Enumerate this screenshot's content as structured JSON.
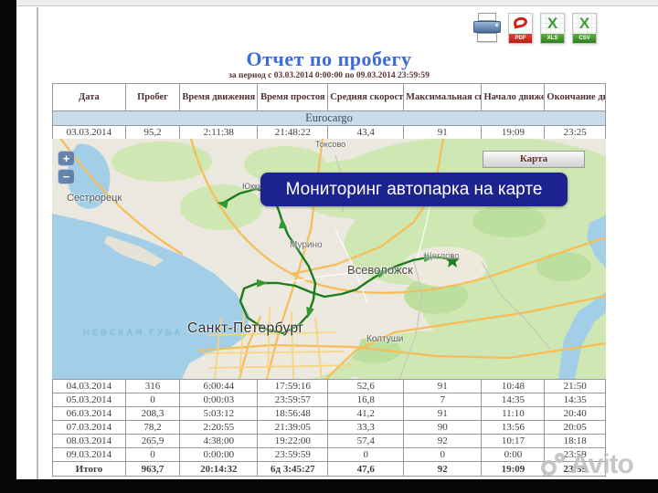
{
  "export": {
    "print_icon": "printer-icon",
    "pdf_label": "PDF",
    "xls_label": "XLS",
    "csv_label": "CSV"
  },
  "report": {
    "title": "Отчет по пробегу",
    "subtitle": "за период с 03.03.2014 0:00:00 по 09.03.2014 23:59:59",
    "columns": [
      "Дата",
      "Пробег",
      "Время движения",
      "Время простоя",
      "Средняя скорость",
      "Максимальная скорость",
      "Начало движения",
      "Окончание движения"
    ],
    "vehicle_group": "Eurocargo",
    "rows_top": [
      [
        "03.03.2014",
        "95,2",
        "2:11:38",
        "21:48:22",
        "43,4",
        "91",
        "19:09",
        "23:25"
      ]
    ],
    "rows_bottom": [
      [
        "04.03.2014",
        "316",
        "6:00:44",
        "17:59:16",
        "52,6",
        "91",
        "10:48",
        "21:50"
      ],
      [
        "05.03.2014",
        "0",
        "0:00:03",
        "23:59:57",
        "16,8",
        "7",
        "14:35",
        "14:35"
      ],
      [
        "06.03.2014",
        "208,3",
        "5:03:12",
        "18:56:48",
        "41,2",
        "91",
        "11:10",
        "20:40"
      ],
      [
        "07.03.2014",
        "78,2",
        "2:20:55",
        "21:39:05",
        "33,3",
        "90",
        "13:56",
        "20:05"
      ],
      [
        "08.03.2014",
        "265,9",
        "4:38:00",
        "19:22:00",
        "57,4",
        "92",
        "10:17",
        "18:18"
      ],
      [
        "09.03.2014",
        "0",
        "0:00:00",
        "23:59:59",
        "0",
        "0",
        "0:00",
        "23:59"
      ]
    ],
    "total_row": [
      "Итого",
      "963,7",
      "20:14:32",
      "6д 3:45:27",
      "47,6",
      "92",
      "19:09",
      "23:59"
    ]
  },
  "map": {
    "banner": "Мониторинг автопарка на карте",
    "layer_button": "Карта",
    "zoom_in": "+",
    "zoom_out": "−",
    "labels": {
      "toksovo": "Токсово",
      "yukki": "Юкки",
      "sestroretsk": "Сестрорецк",
      "murino": "Мурино",
      "vsevolozhsk": "Всеволожск",
      "sheglovo": "Щеглово",
      "koltushi": "Колтуши",
      "spb": "Санкт-Петербург",
      "nevskaya_guba": "НЕВСКАЯ ГУБА"
    }
  },
  "watermark": {
    "text": "Avito"
  },
  "colors": {
    "title_blue": "#3a6bd8",
    "subtitle_maroon": "#5a3434",
    "banner_navy": "#1c2390",
    "route_green": "#1e7a1e",
    "water_blue": "#a3cee8",
    "land_beige": "#ebe8df",
    "forest_green": "#cfe7b2",
    "group_row_blue": "#c9dcea"
  }
}
